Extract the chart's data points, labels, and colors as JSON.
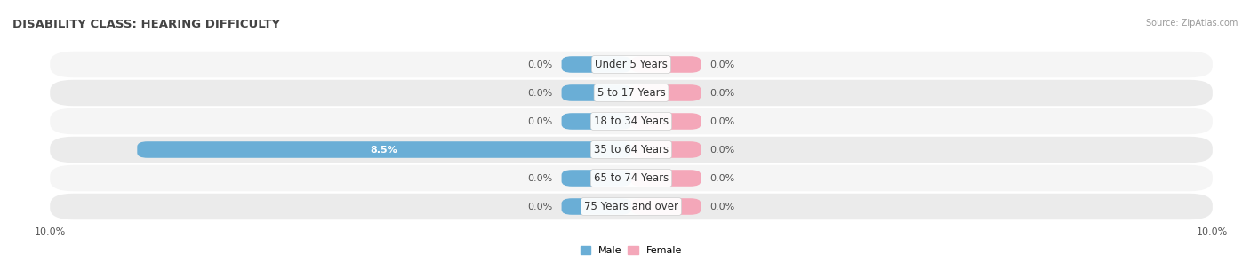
{
  "title": "DISABILITY CLASS: HEARING DIFFICULTY",
  "source": "Source: ZipAtlas.com",
  "categories": [
    "Under 5 Years",
    "5 to 17 Years",
    "18 to 34 Years",
    "35 to 64 Years",
    "65 to 74 Years",
    "75 Years and over"
  ],
  "male_values": [
    0.0,
    0.0,
    0.0,
    8.5,
    0.0,
    0.0
  ],
  "female_values": [
    0.0,
    0.0,
    0.0,
    0.0,
    0.0,
    0.0
  ],
  "male_color": "#6aaed6",
  "female_color": "#f4a7b9",
  "row_bg_light": "#f5f5f5",
  "row_bg_dark": "#ebebeb",
  "stub_size": 1.2,
  "xlim": 10.0,
  "legend_male": "Male",
  "legend_female": "Female",
  "title_fontsize": 9.5,
  "label_fontsize": 8,
  "category_fontsize": 8.5,
  "bar_height": 0.58
}
